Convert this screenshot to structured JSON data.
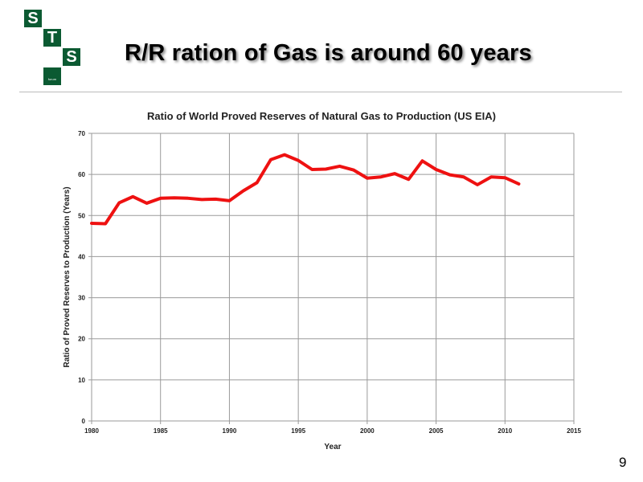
{
  "slide": {
    "title": "R/R ration of Gas is around 60 years",
    "page_number": "9",
    "logo": {
      "letters": [
        "S",
        "T",
        "S"
      ],
      "tagline": "forum",
      "color": "#0b5a32"
    }
  },
  "chart_data": {
    "type": "line",
    "title": "Ratio of World Proved Reserves of Natural Gas to Production (US EIA)",
    "xlabel": "Year",
    "ylabel": "Ratio of Proved Reserves to Production (Years)",
    "xlim": [
      1980,
      2015
    ],
    "ylim": [
      0,
      70
    ],
    "xticks": [
      1980,
      1985,
      1990,
      1995,
      2000,
      2005,
      2010,
      2015
    ],
    "yticks": [
      0,
      10,
      20,
      30,
      40,
      50,
      60,
      70
    ],
    "grid": true,
    "legend": "none",
    "series": [
      {
        "color": "#ee1111",
        "x": [
          1980,
          1981,
          1982,
          1983,
          1984,
          1985,
          1986,
          1987,
          1988,
          1989,
          1990,
          1991,
          1992,
          1993,
          1994,
          1995,
          1996,
          1997,
          1998,
          1999,
          2000,
          2001,
          2002,
          2003,
          2004,
          2005,
          2006,
          2007,
          2008,
          2009,
          2010,
          2011
        ],
        "y": [
          48.1,
          48.0,
          53.1,
          54.6,
          53.0,
          54.2,
          54.3,
          54.2,
          53.9,
          54.0,
          53.6,
          56.0,
          58.0,
          63.6,
          64.8,
          63.4,
          61.2,
          61.3,
          62.0,
          61.1,
          59.1,
          59.4,
          60.2,
          58.8,
          63.3,
          61.2,
          59.9,
          59.4,
          57.5,
          59.4,
          59.2,
          57.7
        ]
      }
    ]
  }
}
